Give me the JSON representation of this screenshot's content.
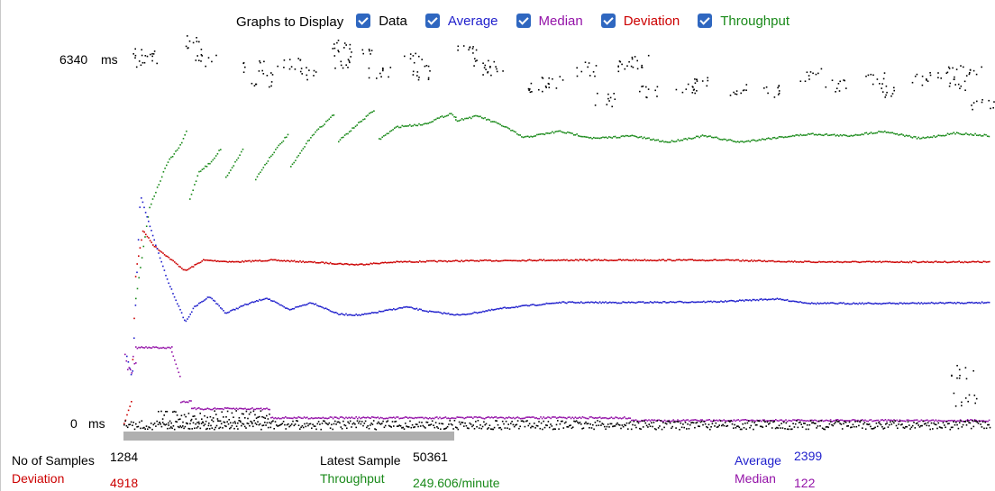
{
  "header": {
    "title": "Graphs to Display",
    "checkboxes": [
      {
        "label": "Data",
        "checked": true,
        "color": "#000000"
      },
      {
        "label": "Average",
        "checked": true,
        "color": "#1f1fcc"
      },
      {
        "label": "Median",
        "checked": true,
        "color": "#9413a8"
      },
      {
        "label": "Deviation",
        "checked": true,
        "color": "#cc0000"
      },
      {
        "label": "Throughput",
        "checked": true,
        "color": "#1a8a1a"
      }
    ]
  },
  "axis": {
    "max_value": "6340",
    "min_value": "0",
    "unit": "ms"
  },
  "stats": {
    "samples": {
      "label": "No of Samples",
      "value": "1284"
    },
    "deviation": {
      "label": "Deviation",
      "value": "4918"
    },
    "latest": {
      "label": "Latest Sample",
      "value": "50361"
    },
    "throughput": {
      "label": "Throughput",
      "value": "249.606/minute"
    },
    "average": {
      "label": "Average",
      "value": "2399"
    },
    "median": {
      "label": "Median",
      "value": "122"
    }
  },
  "chart_data": {
    "type": "scatter",
    "ylim": [
      0,
      6340
    ],
    "y_unit": "ms",
    "x_samples": 1284,
    "series": [
      {
        "name": "Data",
        "color": "#000000"
      },
      {
        "name": "Average",
        "color": "#1f1fcc",
        "final_value": 2399
      },
      {
        "name": "Median",
        "color": "#9413a8",
        "final_value": 122
      },
      {
        "name": "Deviation",
        "color": "#cc0000",
        "final_value": 4918
      },
      {
        "name": "Throughput",
        "color": "#1a8a1a",
        "final_value": 249.606
      }
    ]
  }
}
